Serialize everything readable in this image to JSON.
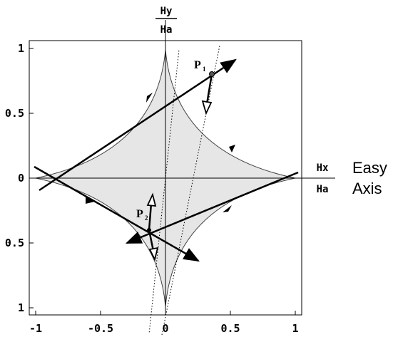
{
  "axes": {
    "x_ticks": [
      "-1",
      "-0.5",
      "0",
      "0.5",
      "1"
    ],
    "y_ticks": [
      "1",
      "0.5",
      "0",
      "0.5",
      "1"
    ],
    "y_label_top": "Hy",
    "y_label_bottom": "Ha",
    "x_label_top": "Hx",
    "x_label_bottom": "Ha",
    "easy_axis_line1": "Easy",
    "easy_axis_line2": "Axis"
  },
  "points": {
    "p1": "P",
    "p1_sub": "1",
    "p2": "P",
    "p2_sub": "2"
  },
  "colors": {
    "astroid_fill": "#e6e6e6",
    "stroke": "#000000"
  }
}
